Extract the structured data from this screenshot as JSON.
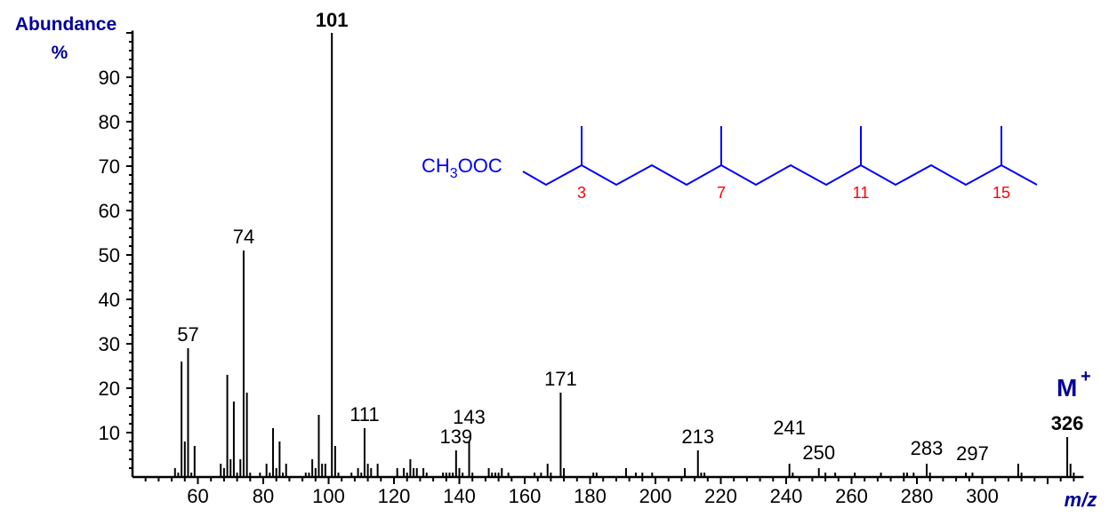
{
  "chart_data": {
    "type": "bar",
    "ylabel": "Abundance",
    "ylabel_unit": "%",
    "xlabel": "m/z",
    "xlim": [
      40,
      331
    ],
    "ylim": [
      0,
      100
    ],
    "x_ticks": [
      60,
      80,
      100,
      120,
      140,
      160,
      180,
      200,
      220,
      240,
      260,
      280,
      300
    ],
    "y_ticks": [
      10,
      20,
      30,
      40,
      50,
      60,
      70,
      80,
      90
    ],
    "grid": false,
    "colors": {
      "peaks": "#000000",
      "base_peak_label": "#008000",
      "molecular_ion": "#00008b",
      "structure": "#0000ff",
      "locants": "#ff0000",
      "axis_title": "#00009a"
    },
    "peaks": [
      [
        53,
        2
      ],
      [
        54,
        1
      ],
      [
        55,
        26
      ],
      [
        56,
        8
      ],
      [
        57,
        29
      ],
      [
        58,
        1
      ],
      [
        59,
        7
      ],
      [
        67,
        3
      ],
      [
        68,
        2
      ],
      [
        69,
        23
      ],
      [
        70,
        4
      ],
      [
        71,
        17
      ],
      [
        72,
        1
      ],
      [
        73,
        4
      ],
      [
        74,
        51
      ],
      [
        75,
        19
      ],
      [
        76,
        1
      ],
      [
        79,
        1
      ],
      [
        81,
        3
      ],
      [
        82,
        1
      ],
      [
        83,
        11
      ],
      [
        84,
        2
      ],
      [
        85,
        8
      ],
      [
        86,
        1
      ],
      [
        87,
        3
      ],
      [
        93,
        1
      ],
      [
        94,
        1
      ],
      [
        95,
        4
      ],
      [
        96,
        2
      ],
      [
        97,
        14
      ],
      [
        98,
        3
      ],
      [
        99,
        3
      ],
      [
        101,
        100
      ],
      [
        102,
        7
      ],
      [
        103,
        1
      ],
      [
        107,
        1
      ],
      [
        109,
        2
      ],
      [
        110,
        1
      ],
      [
        111,
        11
      ],
      [
        112,
        3
      ],
      [
        113,
        2
      ],
      [
        115,
        3
      ],
      [
        121,
        2
      ],
      [
        123,
        2
      ],
      [
        124,
        1
      ],
      [
        125,
        4
      ],
      [
        126,
        2
      ],
      [
        127,
        2
      ],
      [
        129,
        2
      ],
      [
        130,
        1
      ],
      [
        135,
        1
      ],
      [
        136,
        1
      ],
      [
        137,
        1
      ],
      [
        138,
        1
      ],
      [
        139,
        6
      ],
      [
        140,
        2
      ],
      [
        141,
        1
      ],
      [
        143,
        8
      ],
      [
        144,
        1
      ],
      [
        149,
        2
      ],
      [
        150,
        1
      ],
      [
        151,
        1
      ],
      [
        152,
        1
      ],
      [
        153,
        2
      ],
      [
        155,
        1
      ],
      [
        163,
        1
      ],
      [
        165,
        1
      ],
      [
        167,
        3
      ],
      [
        168,
        1
      ],
      [
        171,
        19
      ],
      [
        172,
        2
      ],
      [
        181,
        1
      ],
      [
        182,
        1
      ],
      [
        191,
        2
      ],
      [
        194,
        1
      ],
      [
        196,
        1
      ],
      [
        199,
        1
      ],
      [
        209,
        2
      ],
      [
        213,
        6
      ],
      [
        214,
        1
      ],
      [
        215,
        1
      ],
      [
        241,
        3
      ],
      [
        242,
        1
      ],
      [
        250,
        2
      ],
      [
        252,
        1
      ],
      [
        255,
        1
      ],
      [
        261,
        1
      ],
      [
        269,
        1
      ],
      [
        276,
        1
      ],
      [
        277,
        1
      ],
      [
        279,
        1
      ],
      [
        283,
        3
      ],
      [
        284,
        1
      ],
      [
        295,
        1
      ],
      [
        297,
        1
      ],
      [
        311,
        3
      ],
      [
        312,
        1
      ],
      [
        326,
        9
      ],
      [
        327,
        3
      ],
      [
        328,
        1
      ]
    ],
    "peak_labels": [
      "57",
      "74",
      "101",
      "111",
      "139",
      "143",
      "171",
      "213",
      "241",
      "250",
      "283",
      "297",
      "326"
    ],
    "molecular_ion_label": "M",
    "molecular_ion_charge": "+"
  },
  "structure": {
    "ester_group": "CH",
    "ester_sub": "3",
    "ester_tail": "OOC",
    "locants": [
      "3",
      "7",
      "11",
      "15"
    ]
  }
}
